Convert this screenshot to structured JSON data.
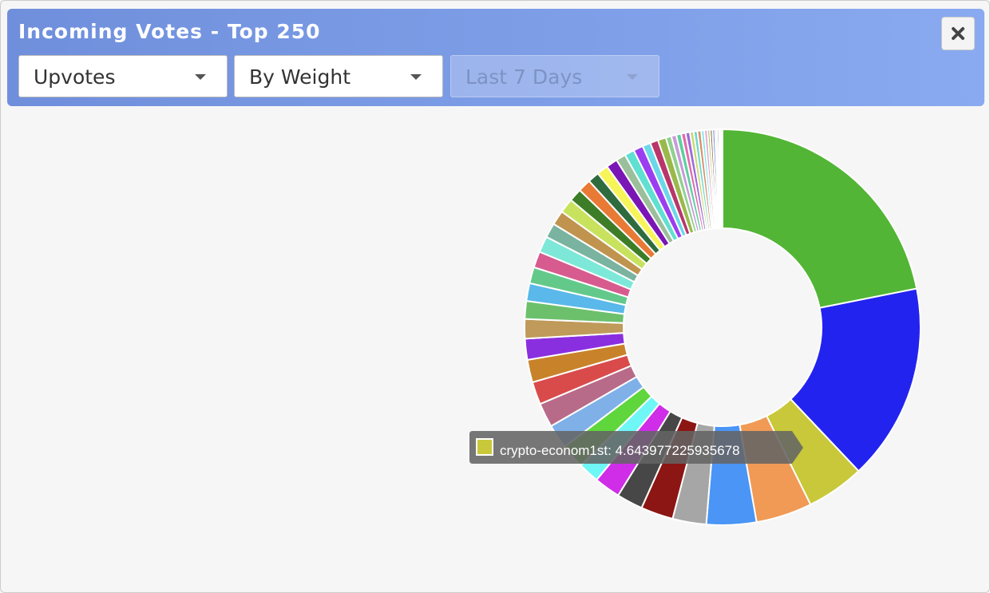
{
  "header": {
    "title": "Incoming Votes - Top 250"
  },
  "controls": {
    "vote_type": "Upvotes",
    "sort": "By Weight",
    "period": "Last 7 Days"
  },
  "chart_data": {
    "type": "donut",
    "categories": [
      null,
      null,
      "crypto-econom1st",
      null,
      null,
      null,
      null,
      null,
      null,
      null,
      null,
      null,
      null,
      null,
      null,
      null,
      null,
      null,
      null,
      null,
      null,
      null,
      null,
      null,
      null,
      null,
      null,
      null,
      null,
      null,
      null,
      null,
      null,
      null,
      null,
      null,
      null,
      null,
      null,
      null,
      null,
      null,
      null,
      null,
      null,
      null,
      null,
      null,
      null,
      null,
      null,
      null,
      null,
      null
    ],
    "values": [
      21.5,
      15.8,
      4.643977225935678,
      4.5,
      4.0,
      2.7,
      2.6,
      2.1,
      2.1,
      1.7,
      1.95,
      1.95,
      1.95,
      1.82,
      1.82,
      1.69,
      1.56,
      1.43,
      1.43,
      1.3,
      1.3,
      1.3,
      1.17,
      1.17,
      1.17,
      1.04,
      1.04,
      0.91,
      0.91,
      0.91,
      0.78,
      0.78,
      0.78,
      0.65,
      0.65,
      0.65,
      0.45,
      0.4,
      0.4,
      0.35,
      0.35,
      0.3,
      0.3,
      0.3,
      0.25,
      0.25,
      0.2,
      0.2,
      0.2,
      0.15,
      0.15,
      0.1,
      0.1,
      0.1
    ],
    "colors": [
      "#52b535",
      "#2323f0",
      "#c8c83a",
      "#f09a55",
      "#4a95f5",
      "#a6a6a6",
      "#8b1613",
      "#474747",
      "#cf2de8",
      "#6ff6f6",
      "#5fd63c",
      "#7fb0e8",
      "#b86b88",
      "#d94b4b",
      "#c8832a",
      "#8a2fe0",
      "#bf9a5a",
      "#6cc06c",
      "#5ab8ea",
      "#62c98a",
      "#d75b8e",
      "#7ee8d8",
      "#7ab3a0",
      "#c0944e",
      "#c8e25e",
      "#3e7d27",
      "#e87a35",
      "#2e6b3e",
      "#f7f45a",
      "#7a16b5",
      "#9bbf9b",
      "#5fe0d0",
      "#9b3ef0",
      "#6ad8e8",
      "#b8366a",
      "#99b94b",
      "#8fd18f",
      "#c99ad8",
      "#5fcfa0",
      "#e06bb0",
      "#9e6bd8",
      "#c9d86b",
      "#6bd8c9",
      "#d88f6b",
      "#7fe8e8",
      "#e8a0c8",
      "#a0c060",
      "#8b6b3e",
      "#6b8bd8",
      "#d8c06b",
      "#5a5a9a",
      "#9a5a5a",
      "#3a7a3a",
      "#1a1a8a"
    ],
    "tooltip_index": 2
  }
}
